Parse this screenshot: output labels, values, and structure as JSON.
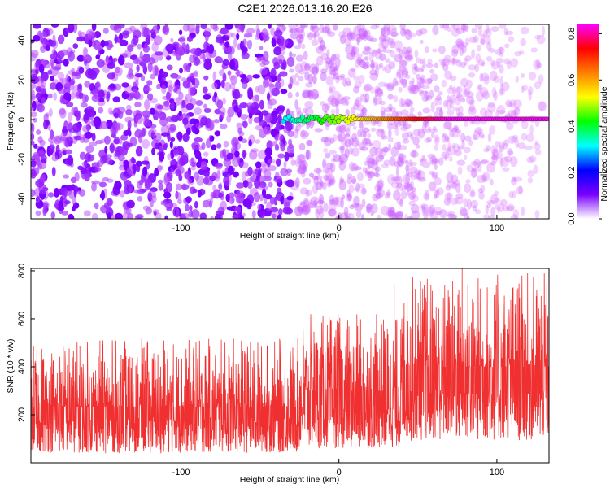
{
  "title": "C2E1.2026.013.16.20.E26",
  "chart_data": [
    {
      "type": "heatmap",
      "xlabel": "Height of straight line (km)",
      "ylabel": "Frequency (Hz)",
      "xlim": [
        -195,
        133
      ],
      "ylim": [
        -50,
        48
      ],
      "xticks": [
        -100,
        0,
        100
      ],
      "yticks": [
        -40,
        -20,
        0,
        20,
        40
      ],
      "colorbar": {
        "label": "Normalized spectral amplitude",
        "range": [
          0,
          0.84
        ],
        "ticks": [
          "0.0",
          "0.2",
          "0.4",
          "0.6",
          "0.8"
        ],
        "tick_values": [
          0,
          0.2,
          0.4,
          0.6,
          0.8
        ],
        "colors": [
          "#ffffff",
          "#7a00ff",
          "#0000ff",
          "#00ffff",
          "#00ff00",
          "#ffff00",
          "#ff8000",
          "#ff0000",
          "#ff00ff"
        ]
      },
      "features": [
        {
          "description_values": "dominant ridge near 0 Hz",
          "x_range": [
            -35,
            133
          ],
          "frequency": 0,
          "amplitude_start": 0.3,
          "amplitude_end": 0.84
        },
        {
          "x_range": [
            -195,
            -30
          ],
          "background_amplitude": 0.15
        },
        {
          "x_range": [
            -30,
            133
          ],
          "background_amplitude": 0.05
        }
      ]
    },
    {
      "type": "line",
      "xlabel": "Height of straight line (km)",
      "ylabel": "SNR (10 * v/v)",
      "xlim": [
        -195,
        133
      ],
      "ylim": [
        0,
        810
      ],
      "xticks": [
        -100,
        0,
        100
      ],
      "yticks": [
        200,
        400,
        600,
        800
      ],
      "series": [
        {
          "color": "#f03030",
          "segments": [
            {
              "x_range": [
                -195,
                -25
              ],
              "mean": 190,
              "low": 40,
              "high": 480
            },
            {
              "x_range": [
                -25,
                40
              ],
              "mean": 240,
              "low": 60,
              "high": 560
            },
            {
              "x_range": [
                40,
                133
              ],
              "mean": 310,
              "low": 90,
              "high": 700
            }
          ],
          "peaks": [
            {
              "x": 78,
              "y": 810
            },
            {
              "x": 35,
              "y": 745
            },
            {
              "x": 128,
              "y": 695
            }
          ]
        }
      ]
    }
  ]
}
